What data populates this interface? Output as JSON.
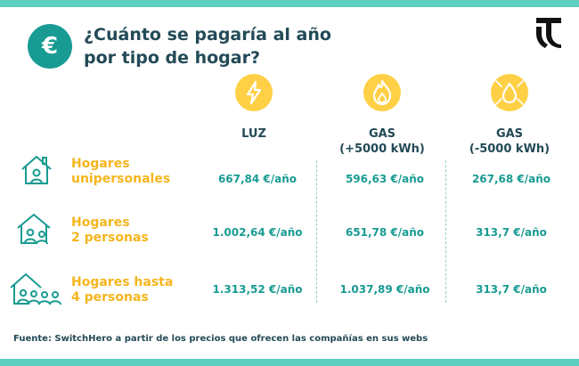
{
  "header": {
    "euro_symbol": "€",
    "title_line1": "¿Cuánto se pagaría al año",
    "title_line2": "por tipo de hogar?"
  },
  "columns": [
    {
      "icon": "lightning-icon",
      "label_line1": "LUZ",
      "label_line2": ""
    },
    {
      "icon": "flame-icon",
      "label_line1": "GAS",
      "label_line2": "(+5000 kWh)"
    },
    {
      "icon": "gas-drop-icon",
      "label_line1": "GAS",
      "label_line2": "(-5000 kWh)"
    }
  ],
  "rows": [
    {
      "icon": "house-single-person-icon",
      "label_line1": "Hogares",
      "label_line2": "unipersonales",
      "values": [
        "667,84 €/año",
        "596,63 €/año",
        "267,68 €/año"
      ]
    },
    {
      "icon": "house-two-persons-icon",
      "label_line1": "Hogares",
      "label_line2": "2 personas",
      "values": [
        "1.002,64 €/año",
        "651,78 €/año",
        "313,7 €/año"
      ]
    },
    {
      "icon": "house-four-persons-icon",
      "label_line1": "Hogares hasta",
      "label_line2": "4 personas",
      "values": [
        "1.313,52 €/año",
        "1.037,89 €/año",
        "313,7 €/año"
      ]
    }
  ],
  "source": "Fuente: SwitchHero a partir de los precios que ofrecen las compañías en sus webs",
  "colors": {
    "teal_dark": "#189b92",
    "teal_band": "#5ccfbf",
    "navy_text": "#234a57",
    "yellow": "#ffd046",
    "orange_label": "#f5b51d"
  }
}
